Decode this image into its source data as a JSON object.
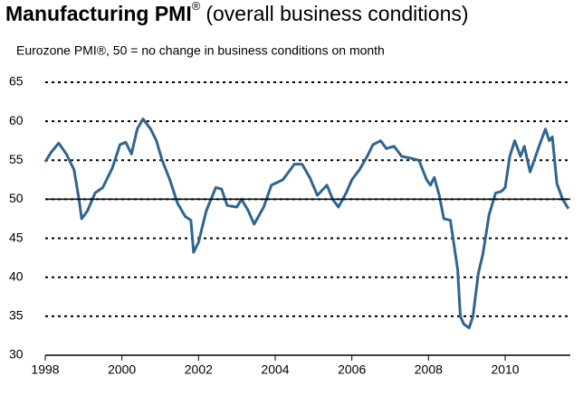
{
  "chart_data": {
    "type": "line",
    "title": "Manufacturing PMI",
    "title_mark": "®",
    "title_suffix": "(overall business conditions)",
    "subtitle": "Eurozone PMI®, 50 = no change in business conditions on month",
    "series": [
      {
        "name": "Eurozone PMI",
        "color": "#2f6590",
        "x": [
          1998.0,
          1998.15,
          1998.35,
          1998.55,
          1998.75,
          1998.88,
          1998.95,
          1999.1,
          1999.3,
          1999.5,
          1999.75,
          1999.95,
          2000.1,
          2000.25,
          2000.4,
          2000.55,
          2000.75,
          2000.9,
          2001.05,
          2001.25,
          2001.45,
          2001.65,
          2001.8,
          2001.87,
          2002.0,
          2002.2,
          2002.45,
          2002.6,
          2002.75,
          2003.0,
          2003.12,
          2003.3,
          2003.45,
          2003.7,
          2003.9,
          2004.2,
          2004.5,
          2004.7,
          2004.9,
          2005.1,
          2005.35,
          2005.5,
          2005.65,
          2005.85,
          2006.0,
          2006.2,
          2006.4,
          2006.55,
          2006.75,
          2006.9,
          2007.1,
          2007.3,
          2007.5,
          2007.75,
          2007.95,
          2008.05,
          2008.15,
          2008.28,
          2008.4,
          2008.57,
          2008.76,
          2008.83,
          2008.92,
          2009.06,
          2009.16,
          2009.3,
          2009.42,
          2009.58,
          2009.75,
          2009.9,
          2010.0,
          2010.12,
          2010.25,
          2010.4,
          2010.5,
          2010.65,
          2010.9,
          2011.05,
          2011.15,
          2011.23,
          2011.35,
          2011.5,
          2011.65
        ],
        "values": [
          54.8,
          56.0,
          57.2,
          55.8,
          53.8,
          50.0,
          47.5,
          48.5,
          50.8,
          51.5,
          54.0,
          57.0,
          57.3,
          55.8,
          59.0,
          60.3,
          59.0,
          57.5,
          55.0,
          52.5,
          49.5,
          47.8,
          47.3,
          43.2,
          44.5,
          48.5,
          51.5,
          51.3,
          49.2,
          49.0,
          50.0,
          48.5,
          46.8,
          49.0,
          51.8,
          52.5,
          54.5,
          54.5,
          52.8,
          50.5,
          51.8,
          50.0,
          49.0,
          50.8,
          52.5,
          53.8,
          55.5,
          57.0,
          57.5,
          56.5,
          56.8,
          55.5,
          55.3,
          55.0,
          52.5,
          51.8,
          52.8,
          50.5,
          47.5,
          47.3,
          41.0,
          35.0,
          34.0,
          33.5,
          35.0,
          40.5,
          43.0,
          48.0,
          50.8,
          51.0,
          51.5,
          55.5,
          57.5,
          55.5,
          56.8,
          53.5,
          57.0,
          59.0,
          57.5,
          58.0,
          52.0,
          50.0,
          48.8
        ]
      }
    ],
    "xlim": [
      1998,
      2011.7
    ],
    "xticks": [
      1998,
      2000,
      2002,
      2004,
      2006,
      2008,
      2010
    ],
    "ylim": [
      30,
      65
    ],
    "yticks": [
      30,
      35,
      40,
      45,
      50,
      55,
      60,
      65
    ],
    "reference_line": 50,
    "grid": true
  }
}
